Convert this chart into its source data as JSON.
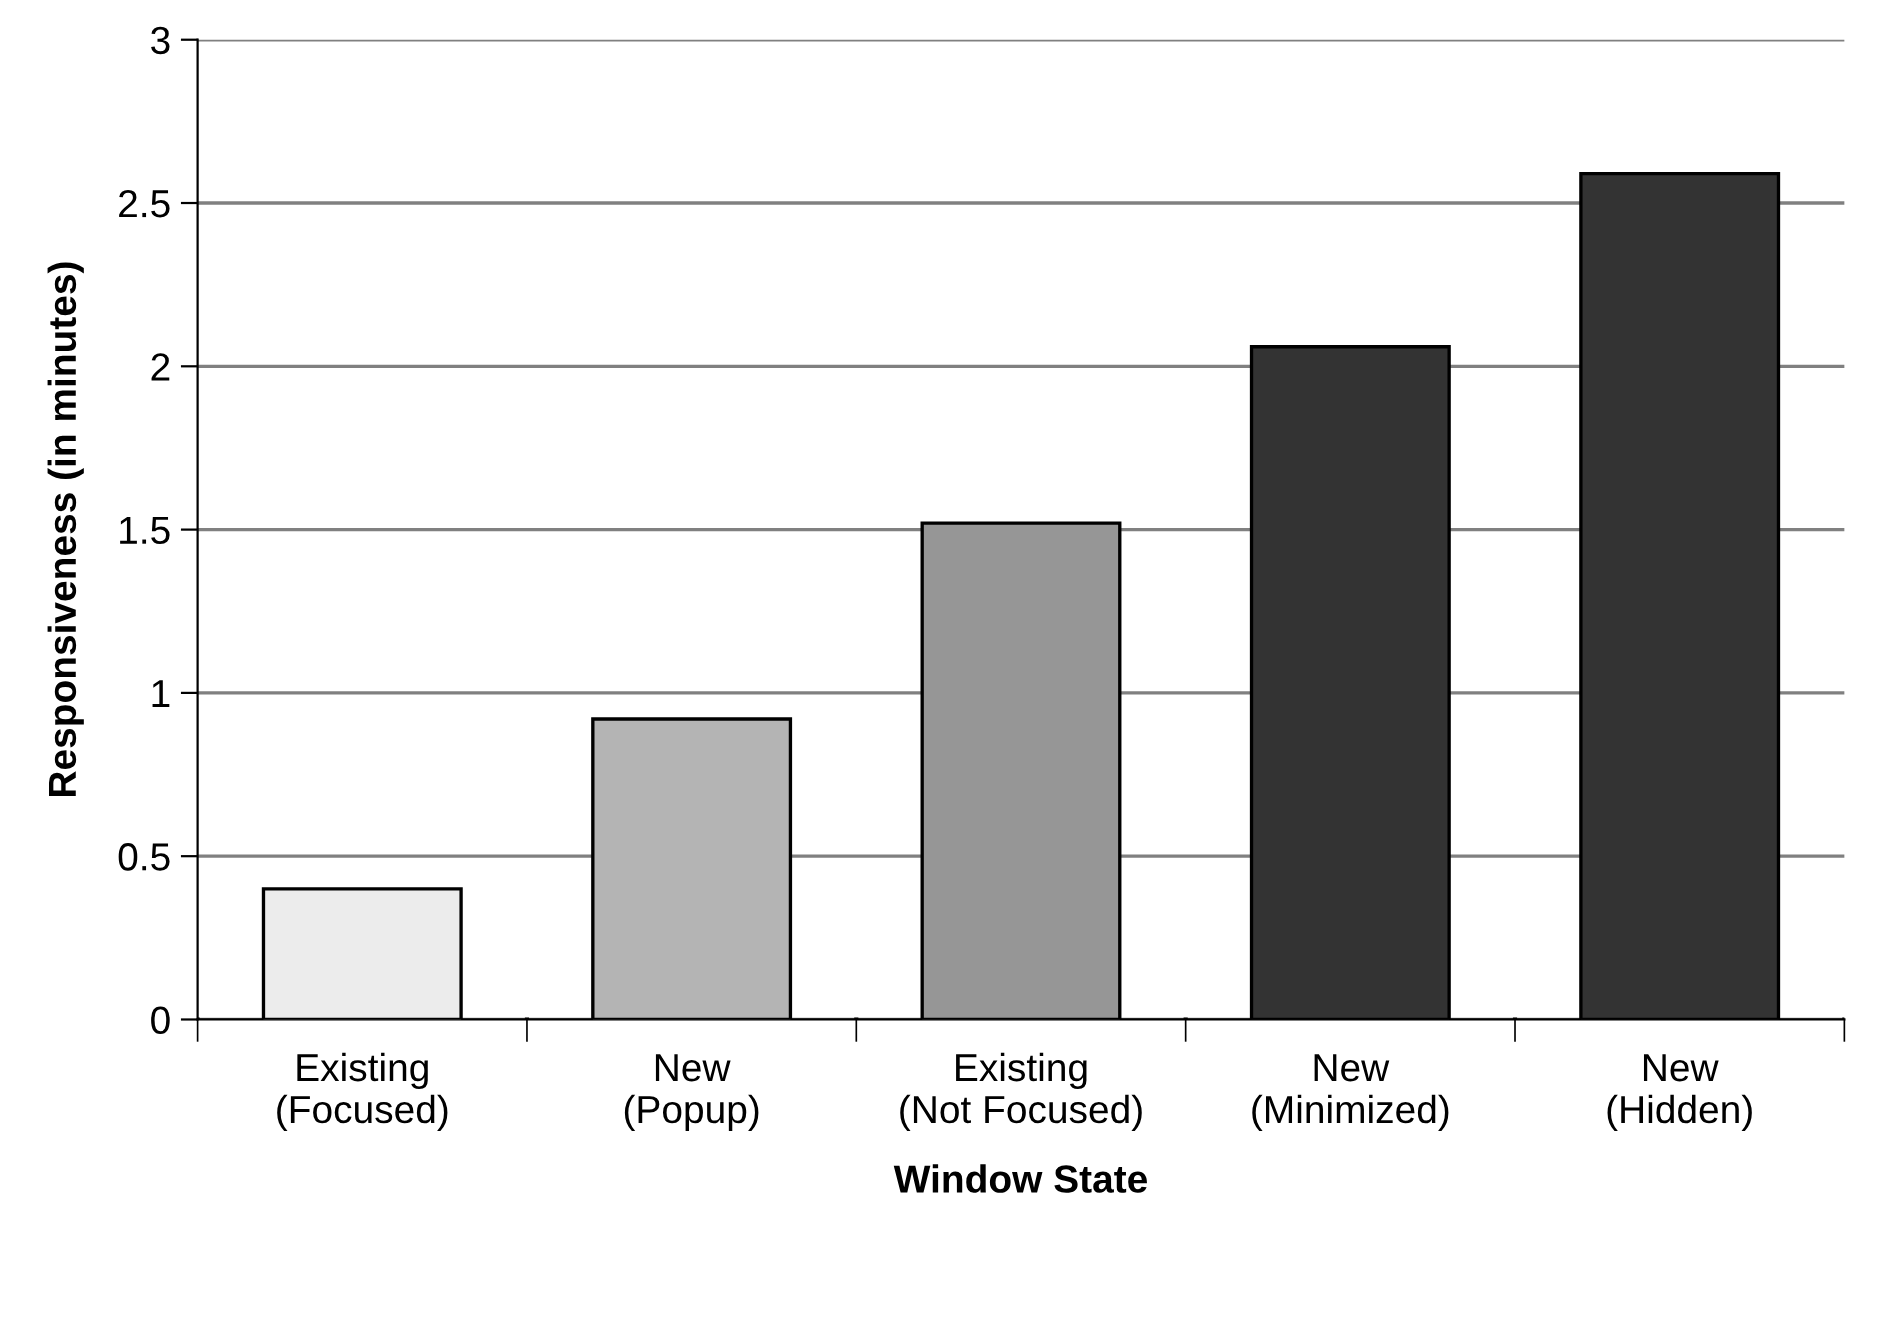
{
  "chart_data": {
    "type": "bar",
    "xlabel": "Window State",
    "ylabel": "Responsiveness (in minutes)",
    "categories": [
      "Existing\n(Focused)",
      "New\n(Popup)",
      "Existing\n(Not Focused)",
      "New\n(Minimized)",
      "New\n(Hidden)"
    ],
    "values": [
      0.4,
      0.92,
      1.52,
      2.06,
      2.59
    ],
    "colors": [
      "#ececec",
      "#b4b4b4",
      "#969696",
      "#333333",
      "#333333"
    ],
    "ylim": [
      0,
      3
    ],
    "yticks": [
      0,
      0.5,
      1,
      1.5,
      2,
      2.5,
      3
    ],
    "grid": "y"
  }
}
